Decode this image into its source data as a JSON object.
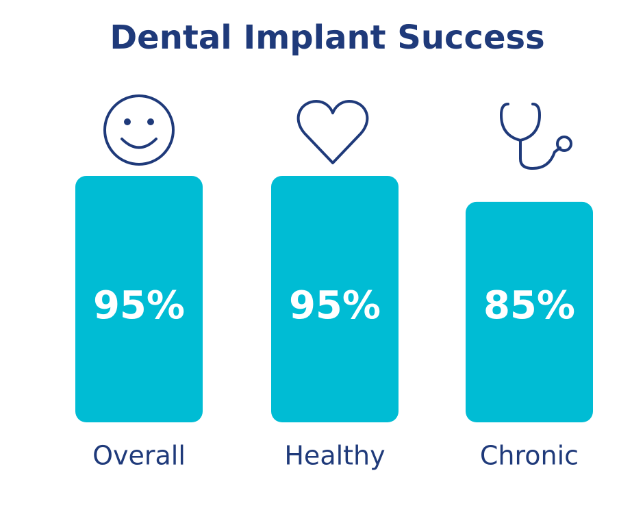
{
  "chart_data": {
    "type": "bar",
    "title": "Dental Implant Success",
    "categories": [
      "Overall",
      "Healthy",
      "Chronic"
    ],
    "values": [
      95,
      95,
      85
    ],
    "value_labels": [
      "95%",
      "95%",
      "85%"
    ],
    "color": "#00bcd4"
  }
}
